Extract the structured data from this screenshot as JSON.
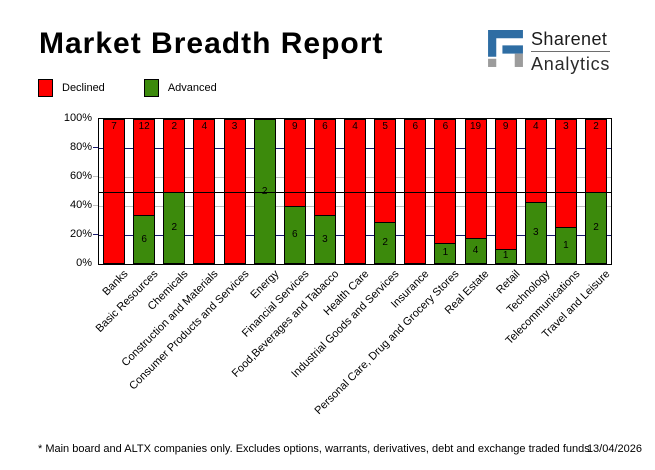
{
  "header": {
    "title": "Market Breadth Report",
    "logo": {
      "line1": "Sharenet",
      "line2": "Analytics",
      "mark_blue": "#2e6da3",
      "mark_gray": "#9c9c9c"
    }
  },
  "legend": [
    {
      "label": "Declined",
      "color": "#fe0000"
    },
    {
      "label": "Advanced",
      "color": "#3c8a0c"
    }
  ],
  "chart_data": {
    "type": "bar",
    "stacked": true,
    "stack_mode": "percent",
    "title": "Market Breadth Report",
    "ylabel": "",
    "xlabel": "",
    "ylim": [
      0,
      100
    ],
    "categories": [
      "Banks",
      "Basic Resources",
      "Chemicals",
      "Construction and Materials",
      "Consumer Products and Services",
      "Energy",
      "Financial Services",
      "Food,Beverages and Tabacco",
      "Health Care",
      "Industrial Goods and Services",
      "Insurance",
      "Personal Care, Drug and Grocery Stores",
      "Real Estate",
      "Retail",
      "Technology",
      "Telecommunications",
      "Travel and Leisure"
    ],
    "series": [
      {
        "name": "Declined",
        "color": "#fe0000",
        "values": [
          7,
          12,
          2,
          4,
          3,
          0,
          9,
          6,
          4,
          5,
          6,
          6,
          19,
          9,
          4,
          3,
          2
        ]
      },
      {
        "name": "Advanced",
        "color": "#3c8a0c",
        "values": [
          0,
          6,
          2,
          0,
          0,
          2,
          6,
          3,
          0,
          2,
          0,
          1,
          4,
          1,
          3,
          1,
          2
        ]
      }
    ],
    "yticks": [
      {
        "label": "100%",
        "value": 100
      },
      {
        "label": "80%",
        "value": 80
      },
      {
        "label": "60%",
        "value": 60
      },
      {
        "label": "40%",
        "value": 40
      },
      {
        "label": "20%",
        "value": 20
      },
      {
        "label": "0%",
        "value": 0
      }
    ],
    "grid": [
      {
        "value": 80,
        "color": "#191970"
      },
      {
        "value": 60,
        "color": "#c0c0c0"
      },
      {
        "value": 50,
        "color": "#000000"
      },
      {
        "value": 40,
        "color": "#c0c0c0"
      },
      {
        "value": 20,
        "color": "#191970"
      }
    ],
    "legend_position": "top-left"
  },
  "footer": {
    "note": "* Main board and ALTX companies only. Excludes options, warrants, derivatives, debt and exchange traded funds",
    "date": "13/04/2026"
  }
}
